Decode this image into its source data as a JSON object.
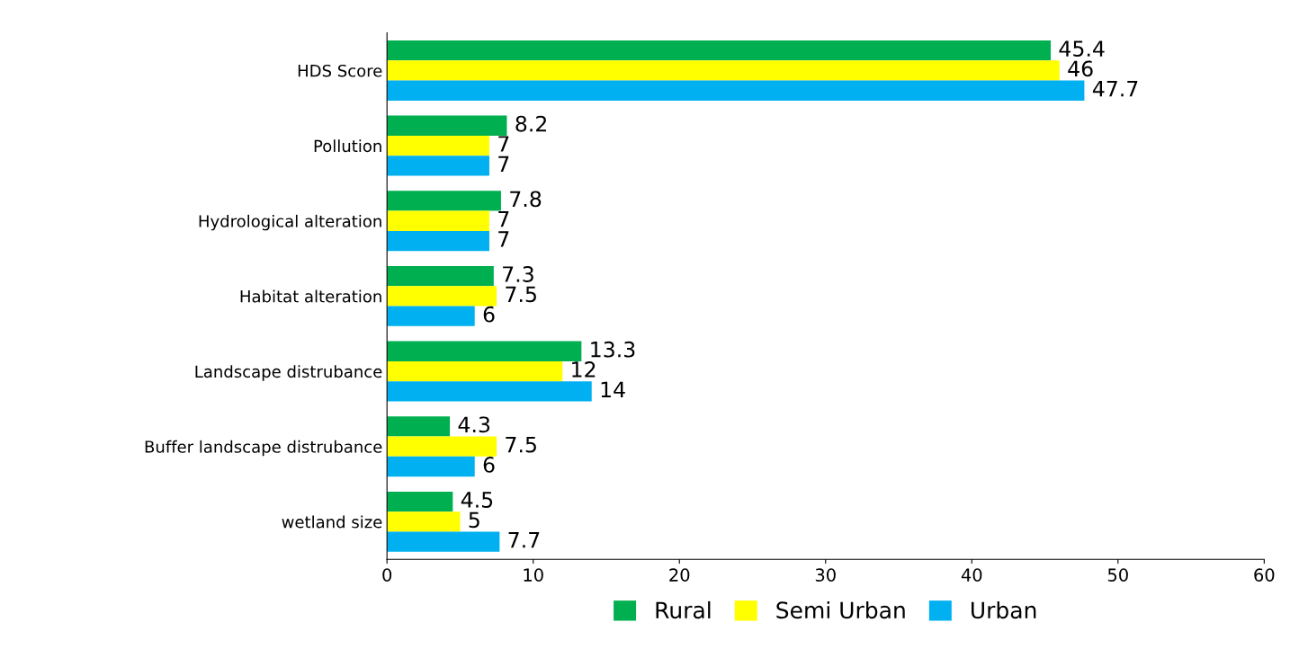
{
  "chart_data": {
    "type": "bar",
    "orientation": "horizontal",
    "categories": [
      "HDS Score",
      "Pollution",
      "Hydrological alteration",
      "Habitat alteration",
      "Landscape distrubance",
      "Buffer landscape distrubance",
      "wetland size"
    ],
    "series": [
      {
        "name": "Rural",
        "color": "#00b050",
        "values": [
          45.4,
          8.2,
          7.8,
          7.3,
          13.3,
          4.3,
          4.5
        ]
      },
      {
        "name": "Semi Urban",
        "color": "#ffff00",
        "values": [
          46,
          7,
          7,
          7.5,
          12,
          7.5,
          5
        ]
      },
      {
        "name": "Urban",
        "color": "#00b0f0",
        "values": [
          47.7,
          7,
          7,
          6,
          14,
          6,
          7.7
        ]
      }
    ],
    "xlim": [
      0,
      60
    ],
    "xticks": [
      0,
      10,
      20,
      30,
      40,
      50,
      60
    ],
    "data_labels": true,
    "legend": "bottom",
    "grid": false
  }
}
